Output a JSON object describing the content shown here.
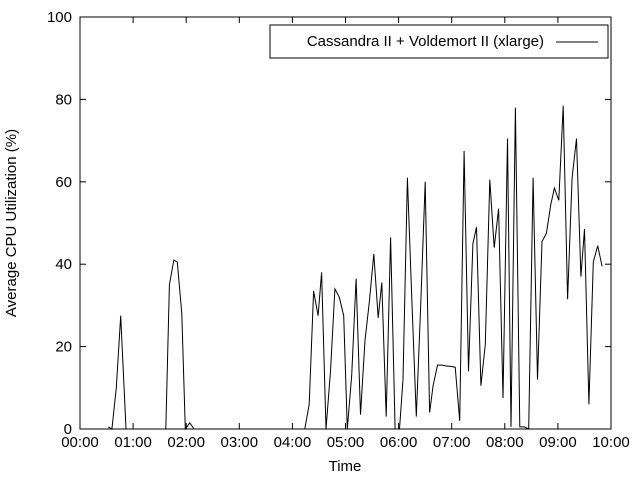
{
  "chart_data": {
    "type": "line",
    "title": "",
    "xlabel": "Time",
    "ylabel": "Average CPU Utilization (%)",
    "xlim": [
      "00:00",
      "10:00"
    ],
    "ylim": [
      0,
      100
    ],
    "grid": false,
    "legend_position": "top-right",
    "x_ticks": [
      "00:00",
      "01:00",
      "02:00",
      "03:00",
      "04:00",
      "05:00",
      "06:00",
      "07:00",
      "08:00",
      "09:00",
      "10:00"
    ],
    "y_ticks": [
      0,
      20,
      40,
      60,
      80,
      100
    ],
    "series": [
      {
        "name": "Cassandra II + Voldemort II (xlarge)",
        "color": "#000000",
        "points": [
          [
            "00:32",
            0.5
          ],
          [
            "00:36",
            0
          ],
          [
            "00:41",
            10
          ],
          [
            "00:46",
            27.5
          ],
          [
            "00:52",
            0
          ],
          [
            "00:56",
            0
          ],
          [
            "01:05",
            0
          ],
          [
            "01:15",
            0
          ],
          [
            "01:25",
            0
          ],
          [
            "01:37",
            0
          ],
          [
            "01:41",
            35
          ],
          [
            "01:46",
            41
          ],
          [
            "01:50",
            40.5
          ],
          [
            "01:55",
            28
          ],
          [
            "01:59",
            0
          ],
          [
            "02:04",
            1.5
          ],
          [
            "02:09",
            0
          ],
          [
            "02:30",
            0
          ],
          [
            "03:00",
            0
          ],
          [
            "03:30",
            0
          ],
          [
            "03:54",
            0
          ],
          [
            "04:09",
            0
          ],
          [
            "04:14",
            0
          ],
          [
            "04:19",
            6
          ],
          [
            "04:24",
            33.5
          ],
          [
            "04:29",
            27.5
          ],
          [
            "04:33",
            38
          ],
          [
            "04:38",
            0
          ],
          [
            "04:43",
            14
          ],
          [
            "04:48",
            34
          ],
          [
            "04:53",
            32
          ],
          [
            "04:58",
            27.5
          ],
          [
            "05:02",
            0
          ],
          [
            "05:07",
            13
          ],
          [
            "05:12",
            36.5
          ],
          [
            "05:17",
            3.5
          ],
          [
            "05:22",
            21.5
          ],
          [
            "05:27",
            31
          ],
          [
            "05:32",
            42.5
          ],
          [
            "05:37",
            27
          ],
          [
            "05:41",
            35.5
          ],
          [
            "05:46",
            3
          ],
          [
            "05:51",
            46.5
          ],
          [
            "05:56",
            0
          ],
          [
            "06:01",
            0
          ],
          [
            "06:05",
            12
          ],
          [
            "06:10",
            61
          ],
          [
            "06:15",
            31
          ],
          [
            "06:20",
            3
          ],
          [
            "06:25",
            30
          ],
          [
            "06:30",
            60
          ],
          [
            "06:35",
            4
          ],
          [
            "06:39",
            10.5
          ],
          [
            "06:44",
            15.5
          ],
          [
            "06:49",
            15.5
          ],
          [
            "06:54",
            15.3
          ],
          [
            "06:59",
            15.2
          ],
          [
            "07:04",
            15
          ],
          [
            "07:09",
            2
          ],
          [
            "07:14",
            67.5
          ],
          [
            "07:19",
            14
          ],
          [
            "07:24",
            45
          ],
          [
            "07:28",
            49
          ],
          [
            "07:33",
            10.5
          ],
          [
            "07:38",
            20.5
          ],
          [
            "07:43",
            60.5
          ],
          [
            "07:48",
            44
          ],
          [
            "07:53",
            53.5
          ],
          [
            "07:58",
            7.5
          ],
          [
            "08:03",
            70.5
          ],
          [
            "08:07",
            0.5
          ],
          [
            "08:12",
            78
          ],
          [
            "08:17",
            0.5
          ],
          [
            "08:22",
            0.5
          ],
          [
            "08:27",
            0
          ],
          [
            "08:32",
            61
          ],
          [
            "08:37",
            12
          ],
          [
            "08:42",
            45.5
          ],
          [
            "08:47",
            47.5
          ],
          [
            "08:52",
            54.5
          ],
          [
            "08:56",
            58.5
          ],
          [
            "09:01",
            55.5
          ],
          [
            "09:06",
            78.5
          ],
          [
            "09:11",
            31.5
          ],
          [
            "09:16",
            61
          ],
          [
            "09:21",
            70.5
          ],
          [
            "09:26",
            37
          ],
          [
            "09:30",
            48.5
          ],
          [
            "09:35",
            6
          ],
          [
            "09:40",
            40.5
          ],
          [
            "09:45",
            44.5
          ],
          [
            "09:50",
            39.5
          ]
        ]
      }
    ]
  }
}
